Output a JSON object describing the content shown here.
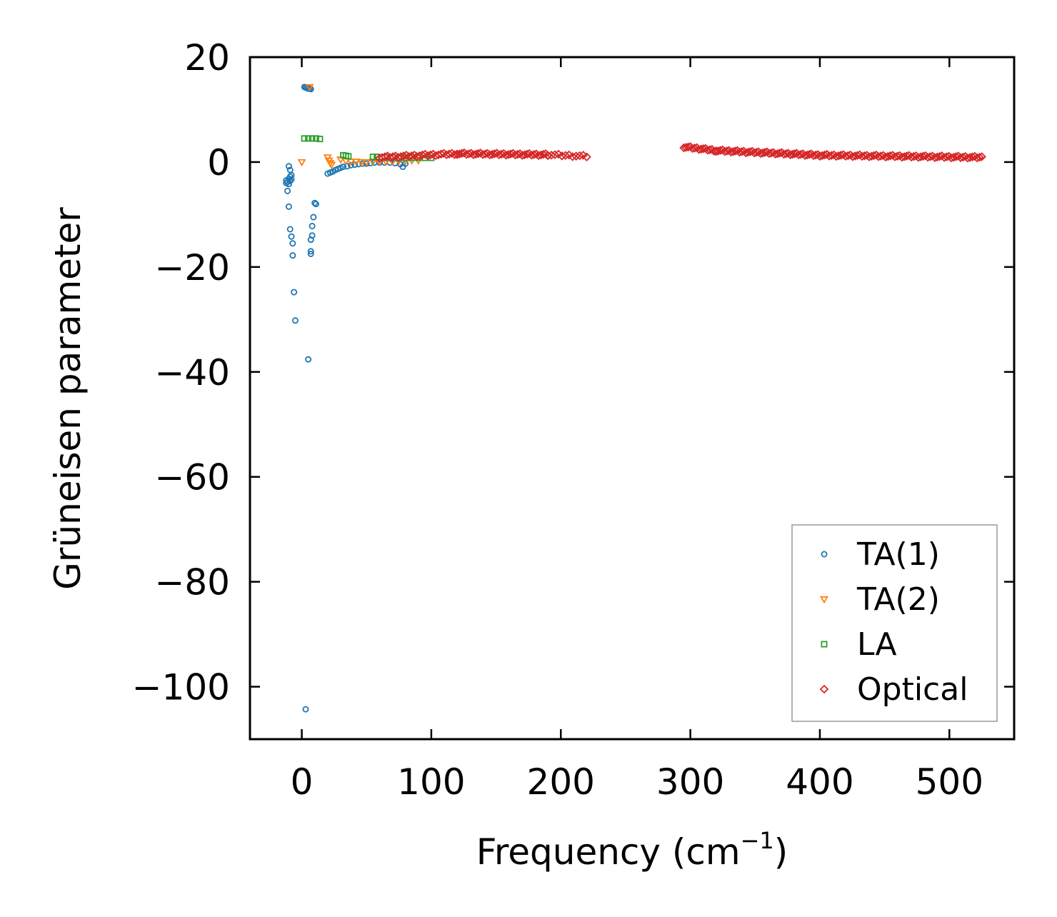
{
  "chart_data": {
    "type": "scatter",
    "title": "",
    "xlabel": "Frequency (cm",
    "xlabel_superscript": "−1",
    "xlabel_suffix": ")",
    "ylabel": "Grüneisen parameter",
    "xlim": [
      -40,
      550
    ],
    "ylim": [
      -110,
      20
    ],
    "xticks": [
      0,
      100,
      200,
      300,
      400,
      500
    ],
    "yticks": [
      20,
      0,
      -20,
      -40,
      -60,
      -80,
      -100
    ],
    "xtick_labels": [
      "0",
      "100",
      "200",
      "300",
      "400",
      "500"
    ],
    "ytick_labels": [
      "20",
      "0",
      "−20",
      "−40",
      "−60",
      "−80",
      "−100"
    ],
    "legend_position": "lower-right",
    "series": [
      {
        "name": "TA(1)",
        "marker": "circle",
        "color": "#1f77b4",
        "points": [
          [
            2,
            14.3
          ],
          [
            3,
            14.2
          ],
          [
            4,
            14.1
          ],
          [
            5,
            14.0
          ],
          [
            6,
            14.0
          ],
          [
            7,
            13.9
          ],
          [
            -12,
            -3.5
          ],
          [
            -12,
            -4.0
          ],
          [
            -11,
            -3.8
          ],
          [
            -10,
            -3.2
          ],
          [
            -10,
            -4.2
          ],
          [
            -9,
            -3.6
          ],
          [
            -9,
            -2.8
          ],
          [
            -10,
            -0.8
          ],
          [
            -9,
            -1.5
          ],
          [
            -8,
            -2.5
          ],
          [
            -8,
            -3.3
          ],
          [
            -11,
            -5.5
          ],
          [
            -10,
            -8.5
          ],
          [
            -9,
            -12.8
          ],
          [
            -8,
            -14.2
          ],
          [
            -7,
            -15.5
          ],
          [
            -7,
            -17.8
          ],
          [
            -6,
            -24.8
          ],
          [
            -5,
            -30.2
          ],
          [
            5,
            -37.6
          ],
          [
            3,
            -104.3
          ],
          [
            10,
            -7.8
          ],
          [
            11,
            -8.0
          ],
          [
            9,
            -10.5
          ],
          [
            8,
            -12.2
          ],
          [
            8,
            -14.0
          ],
          [
            7,
            -14.8
          ],
          [
            7,
            -17.0
          ],
          [
            7,
            -17.5
          ],
          [
            20,
            -2.2
          ],
          [
            22,
            -2.0
          ],
          [
            24,
            -1.8
          ],
          [
            26,
            -1.5
          ],
          [
            28,
            -1.3
          ],
          [
            30,
            -1.1
          ],
          [
            32,
            -0.9
          ],
          [
            35,
            -0.8
          ],
          [
            38,
            -0.6
          ],
          [
            41,
            -0.5
          ],
          [
            44,
            -0.4
          ],
          [
            47,
            -0.3
          ],
          [
            50,
            -0.3
          ],
          [
            53,
            -0.2
          ],
          [
            56,
            -0.1
          ],
          [
            60,
            -0.1
          ],
          [
            64,
            -0.1
          ],
          [
            68,
            -0.1
          ],
          [
            72,
            -0.2
          ],
          [
            76,
            -0.4
          ],
          [
            78,
            -0.9
          ],
          [
            80,
            -0.3
          ]
        ]
      },
      {
        "name": "TA(2)",
        "marker": "triangle",
        "color": "#ff7f0e",
        "points": [
          [
            6,
            14.3
          ],
          [
            0,
            0.0
          ],
          [
            20,
            0.9
          ],
          [
            21,
            0.3
          ],
          [
            22,
            -0.2
          ],
          [
            23,
            -0.5
          ],
          [
            30,
            0.5
          ],
          [
            34,
            0.2
          ],
          [
            38,
            0.1
          ],
          [
            42,
            0.1
          ],
          [
            46,
            0.0
          ],
          [
            50,
            0.0
          ],
          [
            55,
            0.1
          ],
          [
            60,
            0.1
          ],
          [
            65,
            0.1
          ],
          [
            70,
            0.1
          ],
          [
            75,
            0.2
          ],
          [
            80,
            0.2
          ],
          [
            85,
            0.3
          ],
          [
            90,
            0.3
          ]
        ]
      },
      {
        "name": "LA",
        "marker": "square",
        "color": "#2ca02c",
        "points": [
          [
            2,
            4.5
          ],
          [
            5,
            4.5
          ],
          [
            8,
            4.5
          ],
          [
            11,
            4.5
          ],
          [
            14,
            4.4
          ],
          [
            32,
            1.3
          ],
          [
            34,
            1.2
          ],
          [
            36,
            1.1
          ],
          [
            55,
            1.0
          ],
          [
            58,
            1.0
          ],
          [
            62,
            0.9
          ],
          [
            66,
            0.9
          ],
          [
            70,
            0.9
          ],
          [
            75,
            0.8
          ],
          [
            80,
            0.8
          ],
          [
            85,
            0.8
          ],
          [
            90,
            0.8
          ],
          [
            95,
            0.8
          ],
          [
            100,
            0.8
          ]
        ]
      },
      {
        "name": "Optical",
        "marker": "diamond",
        "color": "#d62728",
        "segments": [
          {
            "x_start": 60,
            "x_end": 120,
            "y_start": 0.9,
            "y_end": 1.6,
            "count": 30
          },
          {
            "x_start": 120,
            "x_end": 190,
            "y_start": 1.6,
            "y_end": 1.4,
            "count": 40
          },
          {
            "x_start": 190,
            "x_end": 220,
            "y_start": 1.4,
            "y_end": 1.1,
            "count": 12
          },
          {
            "x_start": 295,
            "x_end": 320,
            "y_start": 2.9,
            "y_end": 2.2,
            "count": 16
          },
          {
            "x_start": 320,
            "x_end": 400,
            "y_start": 2.2,
            "y_end": 1.3,
            "count": 50
          },
          {
            "x_start": 400,
            "x_end": 525,
            "y_start": 1.3,
            "y_end": 0.9,
            "count": 70
          }
        ]
      }
    ]
  }
}
